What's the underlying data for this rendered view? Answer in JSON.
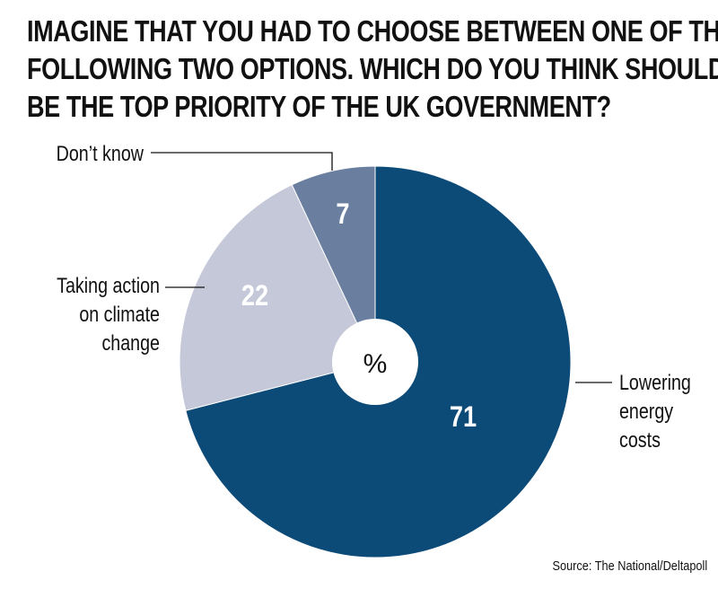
{
  "title_lines": [
    "IMAGINE THAT YOU HAD TO CHOOSE BETWEEN ONE OF THE",
    "FOLLOWING TWO OPTIONS. WHICH DO YOU THINK SHOULD",
    "BE THE TOP PRIORITY OF THE UK GOVERNMENT?"
  ],
  "center_label": "%",
  "source": "Source: The National/Deltapoll",
  "chart_data": {
    "type": "pie",
    "title": "IMAGINE THAT YOU HAD TO CHOOSE BETWEEN ONE OF THE FOLLOWING TWO OPTIONS. WHICH DO YOU THINK SHOULD BE THE TOP PRIORITY OF THE UK GOVERNMENT?",
    "unit": "%",
    "slices": [
      {
        "label": "Lowering energy costs",
        "label_lines": [
          "Lowering",
          "energy",
          "costs"
        ],
        "value": 71,
        "color": "#0c4a78",
        "value_color": "#ffffff"
      },
      {
        "label": "Taking action on climate change",
        "label_lines": [
          "Taking action",
          "on climate",
          "change"
        ],
        "value": 22,
        "color": "#c5c8d8",
        "value_color": "#ffffff"
      },
      {
        "label": "Don’t know",
        "label_lines": [
          "Don’t know"
        ],
        "value": 7,
        "color": "#6a7fa0",
        "value_color": "#ffffff"
      }
    ]
  }
}
